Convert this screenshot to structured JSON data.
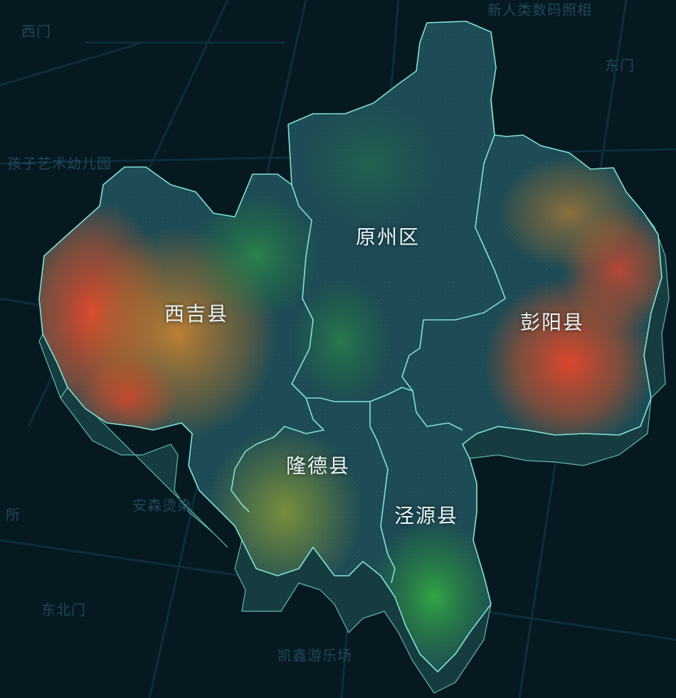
{
  "map": {
    "background_labels": [
      {
        "id": "ximen",
        "text": "西门"
      },
      {
        "id": "xinrenlei",
        "text": "新人类数码照相"
      },
      {
        "id": "dongmen",
        "text": "东门"
      },
      {
        "id": "haizi",
        "text": "孩子艺术幼儿园"
      },
      {
        "id": "ansen",
        "text": "安森烫染"
      },
      {
        "id": "suo",
        "text": "所"
      },
      {
        "id": "dongbeimen",
        "text": "东北门"
      },
      {
        "id": "kaixin",
        "text": "凯鑫游乐场"
      }
    ],
    "districts": [
      {
        "id": "yuanzhou",
        "name": "原州区"
      },
      {
        "id": "xiji",
        "name": "西吉县"
      },
      {
        "id": "pengyang",
        "name": "彭阳县"
      },
      {
        "id": "longde",
        "name": "隆德县"
      },
      {
        "id": "jingyuan",
        "name": "泾源县"
      }
    ],
    "colors": {
      "background": "#061820",
      "region_fill": "#1d4a55",
      "border": "#7fe3d6",
      "side_wall": "#163c3f",
      "heat_high": "#e8452c",
      "heat_mid": "#d9892e",
      "heat_low": "#2fa84a"
    }
  }
}
